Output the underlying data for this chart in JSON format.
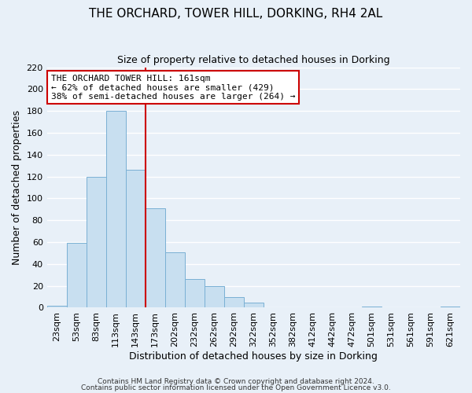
{
  "title": "THE ORCHARD, TOWER HILL, DORKING, RH4 2AL",
  "subtitle": "Size of property relative to detached houses in Dorking",
  "xlabel": "Distribution of detached houses by size in Dorking",
  "ylabel": "Number of detached properties",
  "bin_labels": [
    "23sqm",
    "53sqm",
    "83sqm",
    "113sqm",
    "143sqm",
    "173sqm",
    "202sqm",
    "232sqm",
    "262sqm",
    "292sqm",
    "322sqm",
    "352sqm",
    "382sqm",
    "412sqm",
    "442sqm",
    "472sqm",
    "501sqm",
    "531sqm",
    "561sqm",
    "591sqm",
    "621sqm"
  ],
  "bin_values": [
    2,
    59,
    120,
    180,
    126,
    91,
    51,
    26,
    20,
    10,
    5,
    0,
    0,
    0,
    0,
    0,
    1,
    0,
    0,
    0,
    1
  ],
  "bar_color": "#c8dff0",
  "bar_edge_color": "#7ab0d4",
  "vline_color": "#cc0000",
  "vline_x_index": 5,
  "ylim": [
    0,
    220
  ],
  "yticks": [
    0,
    20,
    40,
    60,
    80,
    100,
    120,
    140,
    160,
    180,
    200,
    220
  ],
  "annotation_title": "THE ORCHARD TOWER HILL: 161sqm",
  "annotation_line1": "← 62% of detached houses are smaller (429)",
  "annotation_line2": "38% of semi-detached houses are larger (264) →",
  "annotation_box_color": "white",
  "annotation_box_edge": "#cc0000",
  "footer1": "Contains HM Land Registry data © Crown copyright and database right 2024.",
  "footer2": "Contains public sector information licensed under the Open Government Licence v3.0.",
  "background_color": "#e8f0f8",
  "grid_color": "white",
  "title_fontsize": 11,
  "subtitle_fontsize": 9,
  "ylabel_fontsize": 9,
  "xlabel_fontsize": 9,
  "tick_fontsize": 8,
  "annotation_fontsize": 8
}
